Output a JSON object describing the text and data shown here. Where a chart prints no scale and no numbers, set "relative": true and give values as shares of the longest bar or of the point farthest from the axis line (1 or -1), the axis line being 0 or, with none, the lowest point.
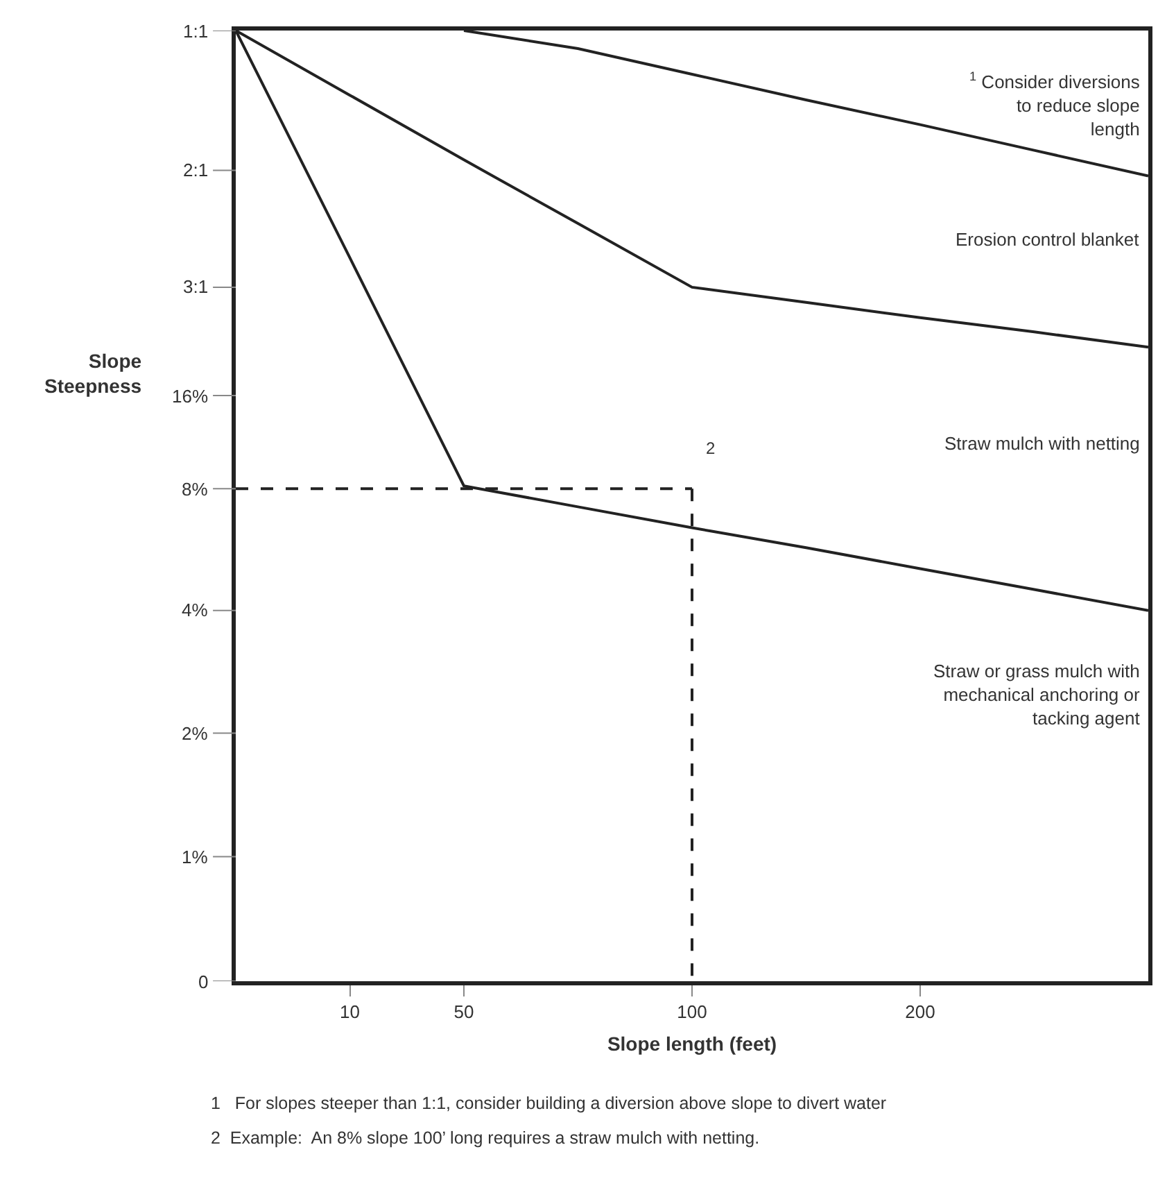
{
  "chart_data": {
    "type": "line",
    "relative": true,
    "xlabel": "Slope length (feet)",
    "ylabel": "Slope\nSteepness",
    "categories": [
      null,
      "10",
      "50",
      null,
      "100",
      null,
      "200",
      null,
      null
    ],
    "marker": "none",
    "line_style": "solid",
    "series": [
      {
        "color": "#222222",
        "values": [
          null,
          null,
          1.0,
          0.981,
          0.954,
          0.927,
          0.901,
          0.874,
          0.847
        ]
      },
      {
        "color": "#222222",
        "values": [
          1.0,
          0.932,
          0.864,
          0.797,
          0.73,
          0.714,
          0.698,
          0.683,
          0.667
        ]
      },
      {
        "color": "#222222",
        "values": [
          1.0,
          0.761,
          0.521,
          0.499,
          0.477,
          0.456,
          0.434,
          0.412,
          0.39
        ]
      },
      {
        "color": "#222222",
        "values": [
          0.518,
          0.518,
          0.518,
          0.518,
          0.518,
          null,
          null,
          null,
          null
        ],
        "line_style": "dashed"
      },
      {
        "color": "#222222",
        "x": [
          "100",
          "100"
        ],
        "values": [
          0.518,
          0
        ],
        "line_style": "dashed"
      }
    ],
    "annotations": [
      "$^{1}$ Consider diversions\nto reduce slope\nlength",
      "Erosion control blanket",
      "Straw mulch with netting",
      "Straw or grass mulch with\nmechanical anchoring or\ntacking agent",
      "2",
      "0",
      "1%",
      "2%",
      "4%",
      "8%",
      "16%",
      "3:1",
      "2:1",
      "1:1",
      "1   For slopes steeper than 1:1, consider building a diversion above slope to divert water",
      "2  Example:  An 8% slope 100’ long requires a straw mulch with netting."
    ]
  }
}
